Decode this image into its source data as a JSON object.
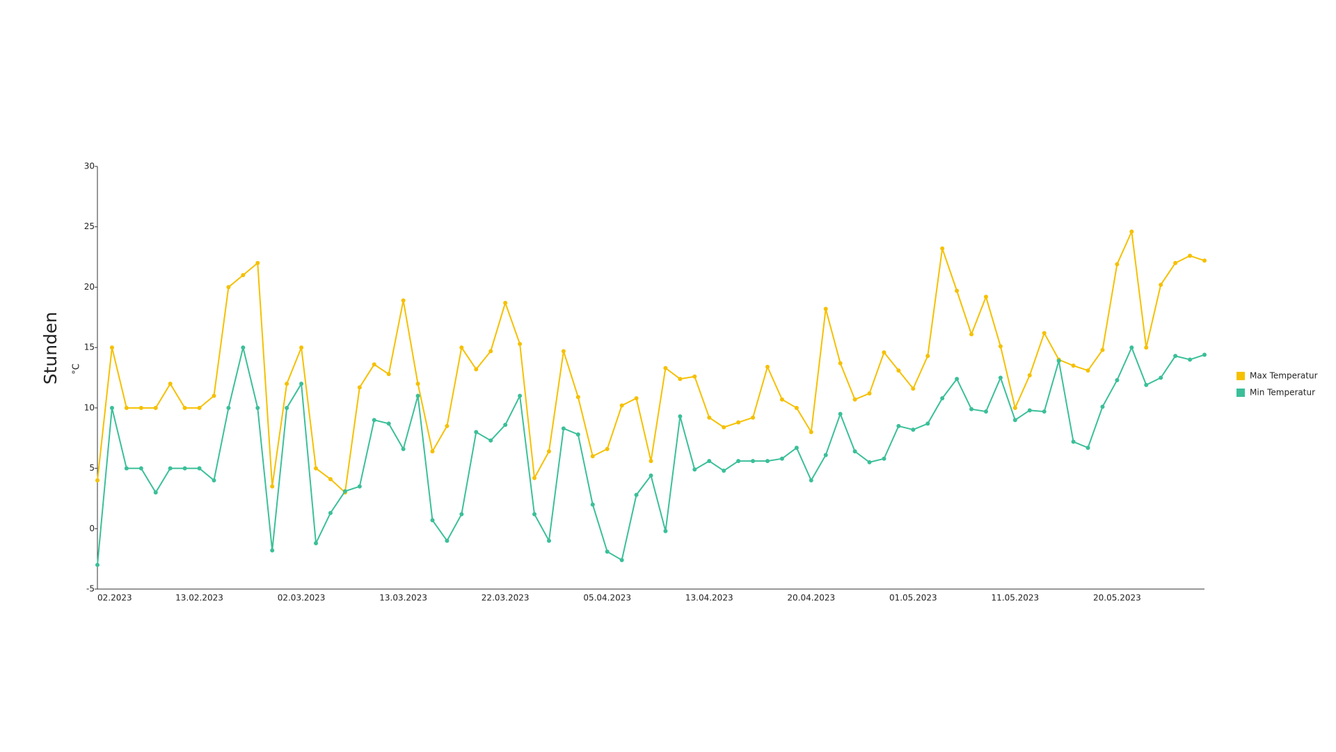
{
  "chart_data": {
    "type": "line",
    "ylabel": "Stunden",
    "yunit": "°C",
    "categories": [
      "02.2023",
      null,
      null,
      null,
      null,
      null,
      null,
      "13.02.2023",
      null,
      null,
      null,
      null,
      null,
      null,
      "02.03.2023",
      null,
      null,
      null,
      null,
      null,
      null,
      "13.03.2023",
      null,
      null,
      null,
      null,
      null,
      null,
      "22.03.2023",
      null,
      null,
      null,
      null,
      null,
      null,
      "05.04.2023",
      null,
      null,
      null,
      null,
      null,
      null,
      "13.04.2023",
      null,
      null,
      null,
      null,
      null,
      null,
      "20.04.2023",
      null,
      null,
      null,
      null,
      null,
      null,
      "01.05.2023",
      null,
      null,
      null,
      null,
      null,
      null,
      "11.05.2023",
      null,
      null,
      null,
      null,
      null,
      null,
      "20.05.2023",
      null,
      null,
      null,
      null,
      null,
      null
    ],
    "series": [
      {
        "name": "Max Temperatur",
        "color": "#f5c000",
        "values": [
          4,
          15,
          10,
          10,
          10,
          12,
          10,
          10,
          11,
          20,
          21,
          22,
          3.5,
          12,
          15,
          5,
          4.1,
          3,
          11.7,
          13.6,
          12.8,
          18.9,
          12,
          6.4,
          8.5,
          15,
          13.2,
          14.7,
          18.7,
          15.3,
          4.2,
          6.4,
          14.7,
          10.9,
          6,
          6.6,
          10.2,
          10.8,
          5.6,
          13.3,
          12.4,
          12.6,
          9.2,
          8.4,
          8.8,
          9.2,
          13.4,
          10.7,
          10,
          8,
          18.2,
          13.7,
          10.7,
          11.2,
          14.6,
          13.1,
          11.6,
          14.3,
          23.2,
          19.7,
          16.1,
          19.2,
          15.1,
          10,
          12.7,
          16.2,
          14,
          13.5,
          13.1,
          14.8,
          21.9,
          24.6,
          15,
          20.2,
          22,
          22.6,
          22.2
        ]
      },
      {
        "name": "Min Temperatur",
        "color": "#3bbf99",
        "values": [
          -3,
          10,
          5,
          5,
          3,
          5,
          5,
          5,
          4,
          10,
          15,
          10,
          -1.8,
          10,
          12,
          -1.2,
          1.3,
          3.1,
          3.5,
          9,
          8.7,
          6.6,
          11,
          0.7,
          -1,
          1.2,
          8,
          7.3,
          8.6,
          11,
          1.2,
          -1,
          8.3,
          7.8,
          2,
          -1.9,
          -2.6,
          2.8,
          4.4,
          -0.2,
          9.3,
          4.9,
          5.6,
          4.8,
          5.6,
          5.6,
          5.6,
          5.8,
          6.7,
          4,
          6.1,
          9.5,
          6.4,
          5.5,
          5.8,
          8.5,
          8.2,
          8.7,
          10.8,
          12.4,
          9.9,
          9.7,
          12.5,
          9,
          9.8,
          9.7,
          13.9,
          7.2,
          6.7,
          10.1,
          12.3,
          15,
          11.9,
          12.5,
          14.3,
          14,
          14.4
        ]
      }
    ],
    "ylim": [
      -5,
      30
    ],
    "yticks": [
      -5,
      0,
      5,
      10,
      15,
      20,
      25,
      30
    ],
    "grid": false,
    "legend": "right"
  }
}
